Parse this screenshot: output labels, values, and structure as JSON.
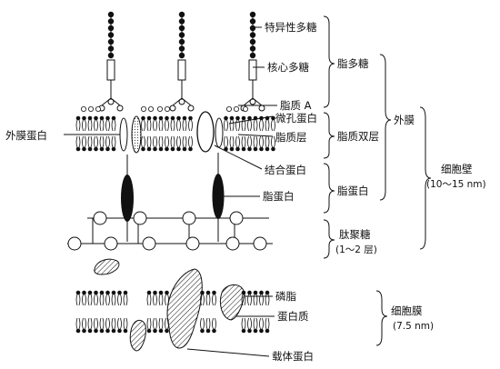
{
  "labels": {
    "specific_polysaccharide": "特异性多糖",
    "core_polysaccharide": "核心多糖",
    "lipid_a": "脂质 A",
    "porin": "微孔蛋白",
    "lipid_layer": "脂质层",
    "outer_membrane_protein": "外膜蛋白",
    "binding_protein": "结合蛋白",
    "lipoprotein": "脂蛋白",
    "phospholipid": "磷脂",
    "protein": "蛋白质",
    "carrier_protein": "载体蛋白"
  },
  "brackets": {
    "lipopolysaccharide": "脂多糖",
    "lipid_bilayer": "脂质双层",
    "lipoprotein_group": "脂蛋白",
    "outer_membrane": "外膜",
    "peptidoglycan": "肽聚糖",
    "peptidoglycan_layers": "(1～2 层)",
    "cell_wall": "细胞壁",
    "cell_wall_size": "(10～15 nm)",
    "cell_membrane": "细胞膜",
    "cell_membrane_size": "(7.5 nm)"
  }
}
